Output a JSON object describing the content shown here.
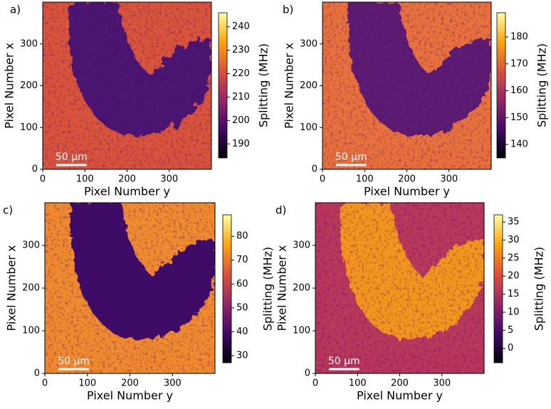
{
  "chart_data": [
    {
      "type": "heatmap",
      "panel_label": "a)",
      "xlabel": "Pixel Number y",
      "ylabel": "Pixel Number x",
      "colorbar_label": "Splitting (MHz)",
      "colormap": "inferno",
      "xlim": [
        0,
        400
      ],
      "ylim": [
        0,
        400
      ],
      "xticks": [
        0,
        100,
        200,
        300
      ],
      "yticks": [
        0,
        100,
        200,
        300
      ],
      "clim": [
        184,
        246
      ],
      "cticks": [
        190,
        200,
        210,
        220,
        230,
        240
      ],
      "scalebar_label": "50 µm"
    },
    {
      "type": "heatmap",
      "panel_label": "b)",
      "xlabel": "Pixel Number y",
      "ylabel": "Pixel Number x",
      "colorbar_label": "Splitting (MHz)",
      "colormap": "inferno",
      "xlim": [
        0,
        400
      ],
      "ylim": [
        0,
        400
      ],
      "xticks": [
        0,
        100,
        200,
        300
      ],
      "yticks": [
        0,
        100,
        200,
        300
      ],
      "clim": [
        135,
        189
      ],
      "cticks": [
        140,
        150,
        160,
        170,
        180
      ],
      "scalebar_label": "50 µm"
    },
    {
      "type": "heatmap",
      "panel_label": "c)",
      "xlabel": "Pixel Number y",
      "ylabel": "Pixel Number x",
      "colorbar_label": "Splitting (MHz)",
      "colormap": "inferno",
      "xlim": [
        0,
        400
      ],
      "ylim": [
        0,
        400
      ],
      "xticks": [
        0,
        100,
        200,
        300
      ],
      "yticks": [
        0,
        100,
        200,
        300
      ],
      "clim": [
        27,
        89
      ],
      "cticks": [
        30,
        40,
        50,
        60,
        70,
        80
      ],
      "scalebar_label": "50 µm"
    },
    {
      "type": "heatmap",
      "panel_label": "d)",
      "xlabel": "Pixel Number y",
      "ylabel": "Pixel Number x",
      "colorbar_label": "Splitting (MHz)",
      "colormap": "inferno",
      "xlim": [
        0,
        400
      ],
      "ylim": [
        0,
        400
      ],
      "xticks": [
        0,
        100,
        200,
        300
      ],
      "yticks": [
        0,
        100,
        200,
        300
      ],
      "clim": [
        -4,
        37
      ],
      "cticks": [
        0,
        5,
        10,
        15,
        20,
        25,
        30,
        35
      ],
      "scalebar_label": "50 µm"
    }
  ]
}
